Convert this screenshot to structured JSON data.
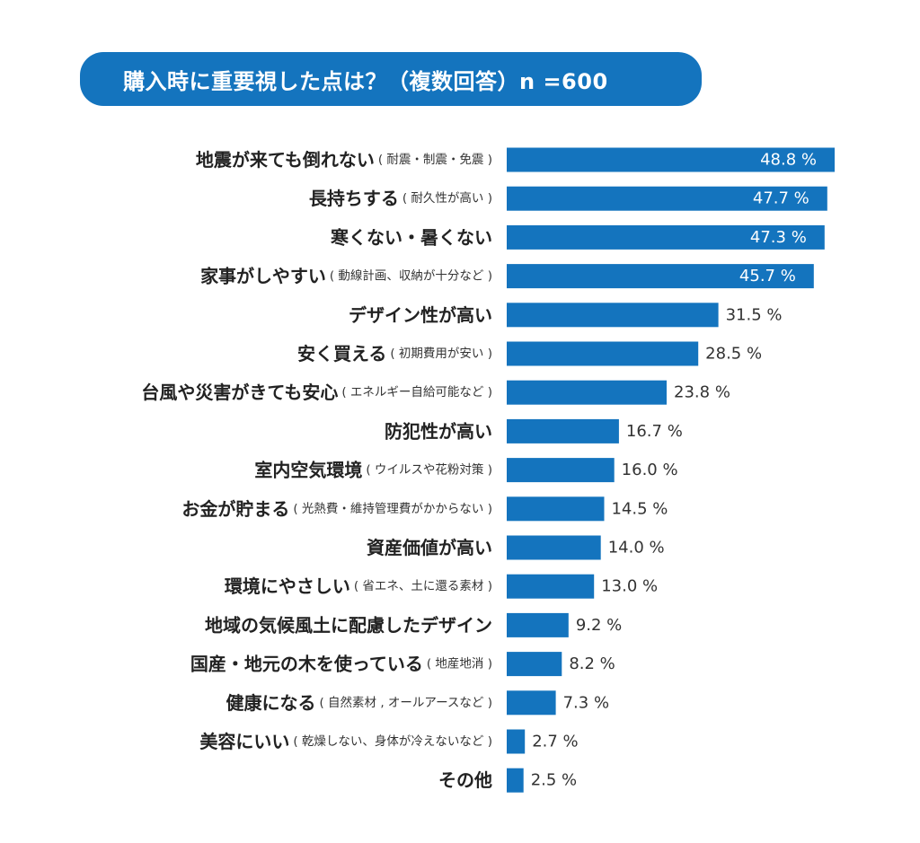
{
  "chart_data": {
    "type": "bar",
    "orientation": "horizontal",
    "title": "購入時に重要視した点は？（複数回答）n =600",
    "value_suffix": " %",
    "bar_color": "#1474be",
    "categories": [
      {
        "main": "地震が来ても倒れない",
        "sub": "( 耐震・制震・免震 )"
      },
      {
        "main": "長持ちする",
        "sub": "( 耐久性が高い )"
      },
      {
        "main": "寒くない・暑くない",
        "sub": ""
      },
      {
        "main": "家事がしやすい",
        "sub": "( 動線計画、収納が十分など )"
      },
      {
        "main": "デザイン性が高い",
        "sub": ""
      },
      {
        "main": "安く買える",
        "sub": "( 初期費用が安い )"
      },
      {
        "main": "台風や災害がきても安心",
        "sub": "( エネルギー自給可能など )"
      },
      {
        "main": "防犯性が高い",
        "sub": ""
      },
      {
        "main": "室内空気環境",
        "sub": "( ウイルスや花粉対策 )"
      },
      {
        "main": "お金が貯まる",
        "sub": "( 光熱費・維持管理費がかからない )"
      },
      {
        "main": "資産価値が高い",
        "sub": ""
      },
      {
        "main": "環境にやさしい",
        "sub": "( 省エネ、土に還る素材 )"
      },
      {
        "main": "地域の気候風土に配慮したデザイン",
        "sub": ""
      },
      {
        "main": "国産・地元の木を使っている",
        "sub": "( 地産地消 )"
      },
      {
        "main": "健康になる",
        "sub": "( 自然素材 , オールアースなど )"
      },
      {
        "main": "美容にいい",
        "sub": "( 乾燥しない、身体が冷えないなど )"
      },
      {
        "main": "その他",
        "sub": ""
      }
    ],
    "values": [
      48.8,
      47.7,
      47.3,
      45.7,
      31.5,
      28.5,
      23.8,
      16.7,
      16.0,
      14.5,
      14.0,
      13.0,
      9.2,
      8.2,
      7.3,
      2.7,
      2.5
    ],
    "labels": [
      "48.8",
      "47.7",
      "47.3",
      "45.7",
      "31.5",
      "28.5",
      "23.8",
      "16.7",
      "16.0",
      "14.5",
      "14.0",
      "13.0",
      "9.2",
      "8.2",
      "7.3",
      "2.7",
      "2.5"
    ],
    "values_inside_bar": 4
  }
}
